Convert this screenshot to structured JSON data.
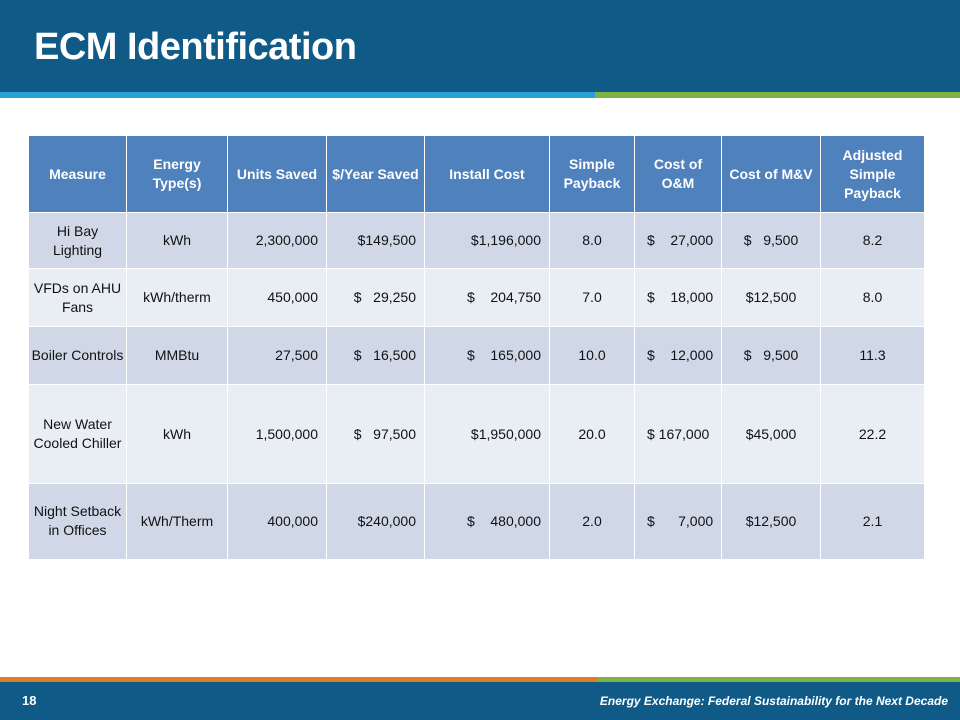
{
  "title": "ECM Identification",
  "colors": {
    "header_bar": "#0f5a86",
    "stripe_blue": "#2a9fd6",
    "stripe_green": "#7cb342",
    "stripe_orange": "#e07b2a",
    "table_header": "#4f81bd",
    "row_odd": "#d0d8e8",
    "row_even": "#e9edf4"
  },
  "table": {
    "headers": [
      "Measure",
      "Energy Type(s)",
      "Units Saved",
      "$/Year Saved",
      "Install Cost",
      "Simple Payback",
      "Cost of O&M",
      "Cost of M&V",
      "Adjusted Simple Payback"
    ],
    "rows": [
      {
        "measure": "Hi Bay Lighting",
        "energy_type": "kWh",
        "units_saved": "2,300,000",
        "year_saved": "$149,500",
        "install_cost": "$1,196,000",
        "simple_payback": "8.0",
        "cost_om": "$    27,000",
        "cost_mv": "$   9,500",
        "adjusted_payback": "8.2"
      },
      {
        "measure": "VFDs on AHU Fans",
        "energy_type": "kWh/therm",
        "units_saved": "450,000",
        "year_saved": "$   29,250",
        "install_cost": "$    204,750",
        "simple_payback": "7.0",
        "cost_om": "$    18,000",
        "cost_mv": "$12,500",
        "adjusted_payback": "8.0"
      },
      {
        "measure": "Boiler Controls",
        "energy_type": "MMBtu",
        "units_saved": "27,500",
        "year_saved": "$   16,500",
        "install_cost": "$    165,000",
        "simple_payback": "10.0",
        "cost_om": "$    12,000",
        "cost_mv": "$   9,500",
        "adjusted_payback": "11.3"
      },
      {
        "measure": "New Water Cooled Chiller",
        "energy_type": "kWh",
        "units_saved": "1,500,000",
        "year_saved": "$   97,500",
        "install_cost": "$1,950,000",
        "simple_payback": "20.0",
        "cost_om": "$ 167,000",
        "cost_mv": "$45,000",
        "adjusted_payback": "22.2"
      },
      {
        "measure": "Night Setback in Offices",
        "energy_type": "kWh/Therm",
        "units_saved": "400,000",
        "year_saved": "$240,000",
        "install_cost": "$    480,000",
        "simple_payback": "2.0",
        "cost_om": "$      7,000",
        "cost_mv": "$12,500",
        "adjusted_payback": "2.1"
      }
    ]
  },
  "footer": {
    "page_number": "18",
    "text": "Energy Exchange: Federal Sustainability for the Next Decade"
  }
}
